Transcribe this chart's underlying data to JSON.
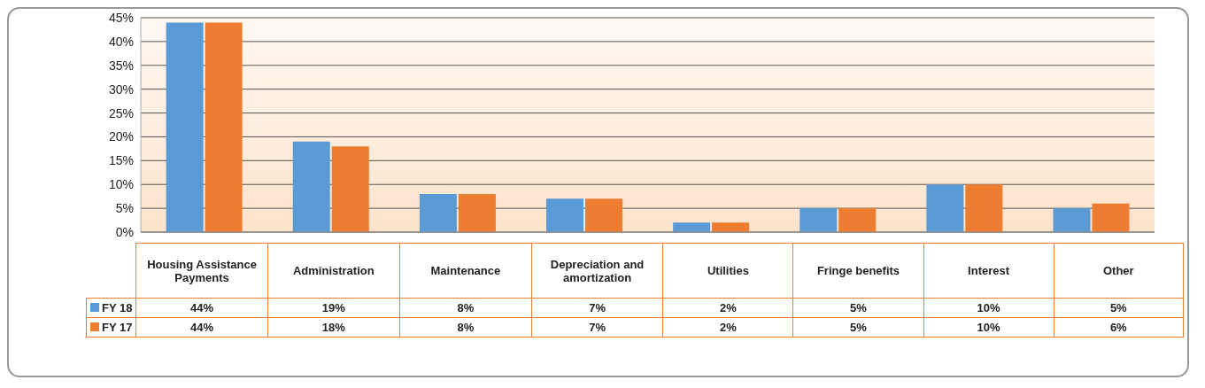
{
  "chart_data": {
    "type": "bar",
    "categories": [
      "Housing Assistance Payments",
      "Administration",
      "Maintenance",
      "Depreciation and amortization",
      "Utilities",
      "Fringe benefits",
      "Interest",
      "Other"
    ],
    "series": [
      {
        "name": "FY 18",
        "color": "#5b9bd5",
        "values": [
          44,
          19,
          8,
          7,
          2,
          5,
          10,
          5
        ],
        "value_labels": [
          "44%",
          "19%",
          "8%",
          "7%",
          "2%",
          "5%",
          "10%",
          "5%"
        ]
      },
      {
        "name": "FY 17",
        "color": "#ed7d31",
        "values": [
          44,
          18,
          8,
          7,
          2,
          5,
          10,
          6
        ],
        "value_labels": [
          "44%",
          "18%",
          "8%",
          "7%",
          "2%",
          "5%",
          "10%",
          "6%"
        ]
      }
    ],
    "ylim": [
      0,
      45
    ],
    "yticks": [
      {
        "value": 0,
        "label": "0%"
      },
      {
        "value": 5,
        "label": "5%"
      },
      {
        "value": 10,
        "label": "10%"
      },
      {
        "value": 15,
        "label": "15%"
      },
      {
        "value": 20,
        "label": "20%"
      },
      {
        "value": 25,
        "label": "25%"
      },
      {
        "value": 30,
        "label": "30%"
      },
      {
        "value": 35,
        "label": "35%"
      },
      {
        "value": 40,
        "label": "40%"
      },
      {
        "value": 45,
        "label": "45%"
      }
    ],
    "grid": "y",
    "legend": "bottom"
  }
}
